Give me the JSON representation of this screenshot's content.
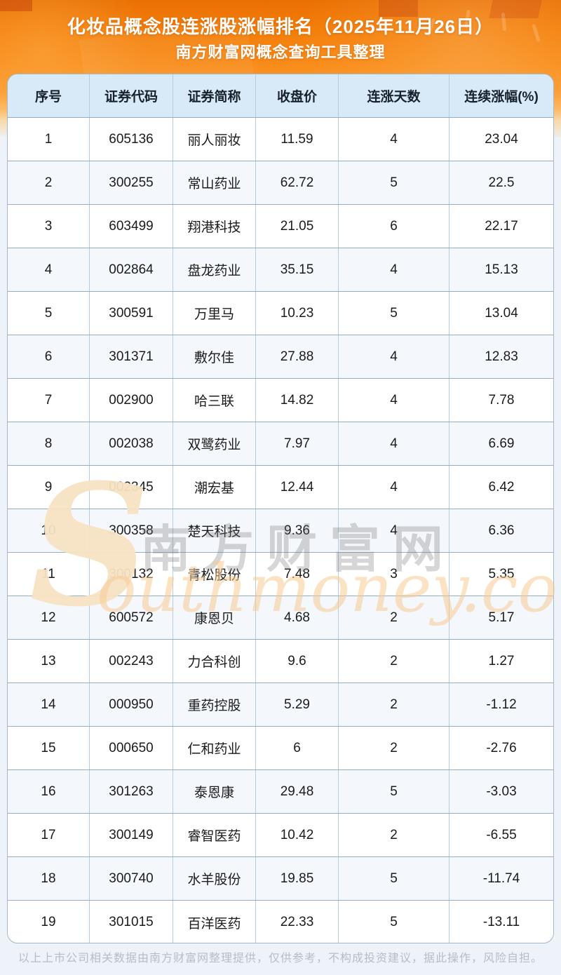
{
  "header": {
    "title": "化妆品概念股连涨股涨幅排名（2025年11月26日）",
    "subtitle": "南方财富网概念查询工具整理"
  },
  "chart_data": {
    "type": "table",
    "title": "化妆品概念股连涨股涨幅排名（2025年11月26日）",
    "columns": [
      "序号",
      "证券代码",
      "证券简称",
      "收盘价",
      "连涨天数",
      "连续涨幅(%)"
    ],
    "rows": [
      {
        "rank": "1",
        "code": "605136",
        "name": "丽人丽妆",
        "close": "11.59",
        "days": "4",
        "gain": "23.04"
      },
      {
        "rank": "2",
        "code": "300255",
        "name": "常山药业",
        "close": "62.72",
        "days": "5",
        "gain": "22.5"
      },
      {
        "rank": "3",
        "code": "603499",
        "name": "翔港科技",
        "close": "21.05",
        "days": "6",
        "gain": "22.17"
      },
      {
        "rank": "4",
        "code": "002864",
        "name": "盘龙药业",
        "close": "35.15",
        "days": "4",
        "gain": "15.13"
      },
      {
        "rank": "5",
        "code": "300591",
        "name": "万里马",
        "close": "10.23",
        "days": "5",
        "gain": "13.04"
      },
      {
        "rank": "6",
        "code": "301371",
        "name": "敷尔佳",
        "close": "27.88",
        "days": "4",
        "gain": "12.83"
      },
      {
        "rank": "7",
        "code": "002900",
        "name": "哈三联",
        "close": "14.82",
        "days": "4",
        "gain": "7.78"
      },
      {
        "rank": "8",
        "code": "002038",
        "name": "双鹭药业",
        "close": "7.97",
        "days": "4",
        "gain": "6.69"
      },
      {
        "rank": "9",
        "code": "002345",
        "name": "潮宏基",
        "close": "12.44",
        "days": "4",
        "gain": "6.42"
      },
      {
        "rank": "10",
        "code": "300358",
        "name": "楚天科技",
        "close": "9.36",
        "days": "4",
        "gain": "6.36"
      },
      {
        "rank": "11",
        "code": "300132",
        "name": "青松股份",
        "close": "7.48",
        "days": "3",
        "gain": "5.35"
      },
      {
        "rank": "12",
        "code": "600572",
        "name": "康恩贝",
        "close": "4.68",
        "days": "2",
        "gain": "5.17"
      },
      {
        "rank": "13",
        "code": "002243",
        "name": "力合科创",
        "close": "9.6",
        "days": "2",
        "gain": "1.27"
      },
      {
        "rank": "14",
        "code": "000950",
        "name": "重药控股",
        "close": "5.29",
        "days": "2",
        "gain": "-1.12"
      },
      {
        "rank": "15",
        "code": "000650",
        "name": "仁和药业",
        "close": "6",
        "days": "2",
        "gain": "-2.76"
      },
      {
        "rank": "16",
        "code": "301263",
        "name": "泰恩康",
        "close": "29.48",
        "days": "5",
        "gain": "-3.03"
      },
      {
        "rank": "17",
        "code": "300149",
        "name": "睿智医药",
        "close": "10.42",
        "days": "2",
        "gain": "-6.55"
      },
      {
        "rank": "18",
        "code": "300740",
        "name": "水羊股份",
        "close": "19.85",
        "days": "5",
        "gain": "-11.74"
      },
      {
        "rank": "19",
        "code": "301015",
        "name": "百洋医药",
        "close": "22.33",
        "days": "5",
        "gain": "-13.11"
      }
    ]
  },
  "watermark": {
    "s": "S",
    "cn": "南方财富网",
    "en": "outhmoney.com"
  },
  "footer": {
    "disclaimer": "以上上市公司相关数据由南方财富网整理提供，仅供参考，不构成投资建议，据此操作，风险自担。"
  },
  "colors": {
    "banner_orange_top": "#e96f02",
    "banner_orange_mid": "#f88c1a",
    "banner_cream": "#f8ddb4",
    "page_background": "#edf3f8",
    "header_row_blue": "#d8e9f8",
    "row_alt_blue": "#f4f7fb",
    "grid_line": "#92adc4",
    "title_text": "#ffffff",
    "cell_text": "#1b1b1b",
    "footer_text": "#b5bdc5",
    "watermark_orange": "#f6cb91",
    "watermark_gray": "#767676"
  }
}
